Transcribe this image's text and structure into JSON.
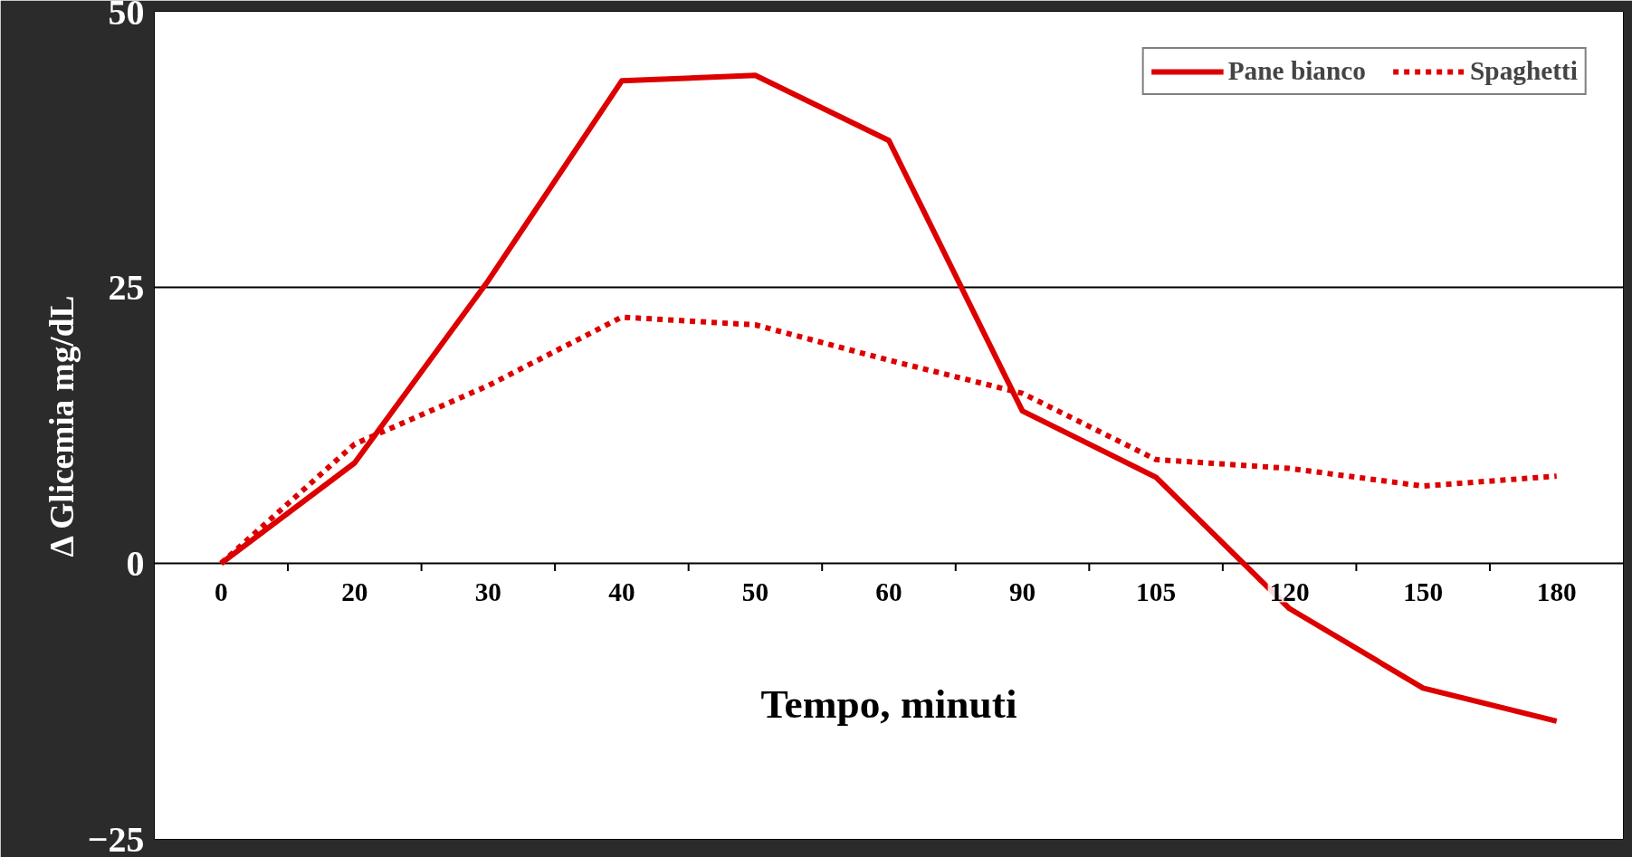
{
  "chart_data": {
    "type": "line",
    "xlabel": "Tempo, minuti",
    "ylabel": "Δ Glicemia mg/dL",
    "categories": [
      "0",
      "20",
      "30",
      "40",
      "50",
      "60",
      "90",
      "105",
      "120",
      "150",
      "180"
    ],
    "series": [
      {
        "name": "Pane bianco",
        "color": "#dd0000",
        "line_style": "solid",
        "values": [
          0,
          9.1,
          25.6,
          43.7,
          44.2,
          38.3,
          13.8,
          7.8,
          -4.1,
          -11.3,
          -14.3
        ]
      },
      {
        "name": "Spaghetti",
        "color": "#dd0000",
        "line_style": "dotted",
        "values": [
          0,
          10.8,
          16.1,
          22.3,
          21.6,
          18.4,
          15.4,
          9.4,
          8.6,
          7.0,
          7.9
        ]
      }
    ],
    "ylim": [
      -25,
      50
    ],
    "yticks": [
      -25,
      0,
      25,
      50
    ],
    "grid": "y",
    "legend": "top right",
    "marker": "none"
  }
}
